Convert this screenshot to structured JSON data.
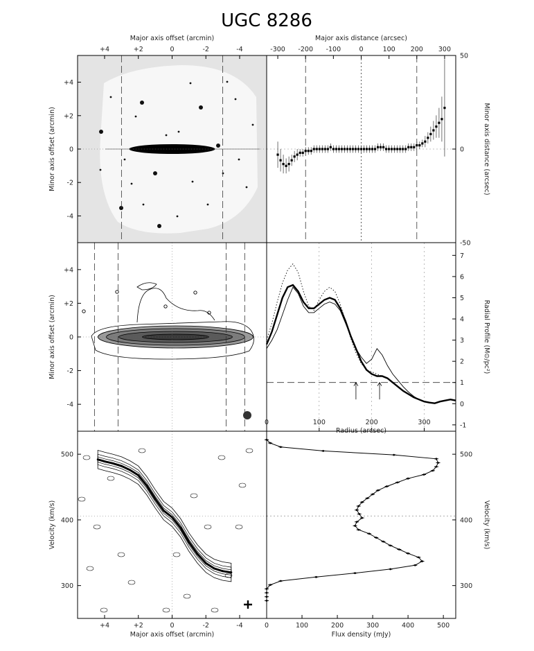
{
  "title": "UGC 8286",
  "chart_data": [
    {
      "id": "optical_image",
      "type": "image",
      "top_xlabel": "Major axis offset (arcmin)",
      "ylabel": "Minor axis offset (arcmin)",
      "xticks": [
        "+4",
        "+2",
        "0",
        "-2",
        "-4"
      ],
      "yticks": [
        "+4",
        "+2",
        "0",
        "-2",
        "-4"
      ],
      "xlim": [
        5.6,
        -5.6
      ],
      "ylim": [
        -5.6,
        5.6
      ],
      "grid": false
    },
    {
      "id": "warp_curve",
      "type": "scatter",
      "top_xlabel": "Major axis distance (arcsec)",
      "ylabel": "Minor axis distance (arcsec)",
      "xticks": [
        "-300",
        "-200",
        "-100",
        "0",
        "100",
        "200",
        "300"
      ],
      "yticks": [
        "50",
        "0",
        "-50"
      ],
      "xlim": [
        -340,
        340
      ],
      "ylim": [
        -50,
        50
      ],
      "x": [
        -300,
        -290,
        -280,
        -270,
        -260,
        -250,
        -240,
        -230,
        -220,
        -210,
        -200,
        -190,
        -180,
        -170,
        -160,
        -150,
        -140,
        -130,
        -120,
        -110,
        -100,
        -90,
        -80,
        -70,
        -60,
        -50,
        -40,
        -30,
        -20,
        -10,
        0,
        10,
        20,
        30,
        40,
        50,
        60,
        70,
        80,
        90,
        100,
        110,
        120,
        130,
        140,
        150,
        160,
        170,
        180,
        190,
        200,
        210,
        220,
        230,
        240,
        250,
        260,
        270,
        280,
        290,
        300
      ],
      "y": [
        -3,
        -6,
        -8,
        -9,
        -8,
        -6,
        -4,
        -3,
        -2,
        -2,
        -1,
        -1,
        -1,
        0,
        0,
        0,
        0,
        0,
        0,
        1,
        0,
        0,
        0,
        0,
        0,
        0,
        0,
        0,
        0,
        0,
        0,
        0,
        0,
        0,
        0,
        0,
        1,
        1,
        1,
        0,
        0,
        0,
        0,
        0,
        0,
        0,
        0,
        1,
        1,
        1,
        2,
        2,
        3,
        4,
        6,
        8,
        10,
        12,
        14,
        16,
        22
      ],
      "err": [
        7,
        6,
        5,
        4,
        4,
        3,
        3,
        3,
        2,
        2,
        2,
        2,
        2,
        2,
        2,
        2,
        2,
        2,
        2,
        2,
        2,
        2,
        2,
        2,
        2,
        2,
        2,
        2,
        2,
        2,
        2,
        2,
        2,
        2,
        2,
        2,
        2,
        2,
        2,
        2,
        2,
        2,
        2,
        2,
        2,
        2,
        2,
        2,
        2,
        2,
        2,
        2,
        2,
        3,
        3,
        4,
        5,
        6,
        8,
        12,
        26
      ],
      "vlines": [
        -200,
        0,
        200
      ]
    },
    {
      "id": "hi_map",
      "type": "contour",
      "ylabel": "Minor axis offset (arcmin)",
      "yticks": [
        "+4",
        "+2",
        "0",
        "-2",
        "-4"
      ],
      "xlim": [
        5.6,
        -5.6
      ],
      "ylim": [
        -5.6,
        5.6
      ],
      "grid": false
    },
    {
      "id": "radial_profile",
      "type": "line",
      "xlabel": "Radius (arcsec)",
      "ylabel": "Radial Profile (M⊙/pc²)",
      "xticks": [
        "0",
        "100",
        "200",
        "300"
      ],
      "yticks": [
        "7",
        "6",
        "5",
        "4",
        "3",
        "2",
        "1",
        "0",
        "-1"
      ],
      "xlim": [
        0,
        360
      ],
      "ylim": [
        -1.3,
        7.6
      ],
      "x": [
        0,
        10,
        20,
        30,
        40,
        50,
        60,
        70,
        80,
        90,
        100,
        110,
        120,
        130,
        140,
        150,
        160,
        170,
        180,
        190,
        200,
        210,
        220,
        230,
        240,
        250,
        260,
        270,
        280,
        290,
        300,
        310,
        320,
        330,
        340,
        350,
        360
      ],
      "series": [
        {
          "style": "thick",
          "values": [
            2.8,
            3.4,
            4.2,
            5.0,
            5.5,
            5.6,
            5.3,
            4.8,
            4.5,
            4.5,
            4.7,
            4.9,
            5.0,
            4.9,
            4.5,
            3.9,
            3.2,
            2.6,
            2.0,
            1.6,
            1.4,
            1.3,
            1.3,
            1.2,
            1.0,
            0.8,
            0.6,
            0.45,
            0.3,
            0.2,
            0.1,
            0.05,
            0.02,
            0.1,
            0.15,
            0.2,
            0.15
          ]
        },
        {
          "style": "thin",
          "values": [
            2.6,
            3.0,
            3.5,
            4.2,
            4.9,
            5.5,
            5.2,
            4.6,
            4.3,
            4.3,
            4.5,
            4.7,
            4.8,
            4.7,
            4.4,
            3.8,
            3.2,
            2.6,
            2.2,
            1.9,
            2.1,
            2.6,
            2.3,
            1.8,
            1.4,
            1.1,
            0.8,
            0.55,
            0.35,
            0.2,
            0.1,
            0.05,
            0.02,
            0.1,
            0.15,
            0.2,
            0.15
          ]
        },
        {
          "style": "dotted",
          "values": [
            3.0,
            3.8,
            4.8,
            5.7,
            6.3,
            6.6,
            6.2,
            5.3,
            4.6,
            4.4,
            4.9,
            5.3,
            5.5,
            5.3,
            4.7,
            3.9,
            3.1,
            2.4,
            1.9,
            1.6,
            1.5,
            1.4,
            1.3,
            1.2,
            1.0,
            0.8,
            0.6,
            0.45,
            0.3,
            0.2,
            0.1,
            0.05,
            0.02,
            0.1,
            0.15,
            0.2,
            0.15
          ]
        }
      ],
      "hline": 1,
      "arrows_x": [
        170,
        215
      ]
    },
    {
      "id": "pv_diagram",
      "type": "contour",
      "xlabel": "Major axis offset (arcmin)",
      "ylabel": "Velocity (km/s)",
      "xticks": [
        "+4",
        "+2",
        "0",
        "-2",
        "-4"
      ],
      "yticks": [
        "500",
        "400",
        "300"
      ],
      "xlim": [
        5.6,
        -5.6
      ],
      "ylim": [
        250,
        535
      ],
      "rotation_curve": {
        "x": [
          4.4,
          4.0,
          3.5,
          3.0,
          2.5,
          2.0,
          1.5,
          1.0,
          0.5,
          0.0,
          -0.5,
          -1.0,
          -1.5,
          -2.0,
          -2.5,
          -3.0,
          -3.5
        ],
        "v": [
          492,
          489,
          486,
          482,
          476,
          468,
          452,
          432,
          414,
          404,
          388,
          366,
          348,
          334,
          326,
          322,
          320
        ]
      }
    },
    {
      "id": "global_profile",
      "type": "line",
      "xlabel": "Flux density (mJy)",
      "ylabel": "Velocity (km/s)",
      "xticks": [
        "0",
        "100",
        "200",
        "300",
        "400",
        "500"
      ],
      "yticks": [
        "500",
        "400",
        "300"
      ],
      "xlim": [
        0,
        535
      ],
      "ylim": [
        250,
        535
      ],
      "v": [
        522,
        517,
        511,
        505,
        499,
        493,
        487,
        481,
        475,
        469,
        463,
        457,
        451,
        445,
        439,
        433,
        427,
        421,
        415,
        409,
        403,
        397,
        391,
        385,
        379,
        373,
        367,
        361,
        355,
        349,
        343,
        337,
        331,
        325,
        319,
        313,
        307,
        301,
        295,
        289,
        283,
        277
      ],
      "flux": [
        0,
        10,
        40,
        160,
        360,
        480,
        485,
        480,
        470,
        445,
        400,
        370,
        340,
        315,
        300,
        285,
        270,
        260,
        255,
        262,
        270,
        255,
        250,
        260,
        290,
        310,
        330,
        350,
        375,
        400,
        430,
        440,
        420,
        350,
        250,
        140,
        40,
        10,
        0,
        0,
        0,
        0
      ],
      "hline": 406
    }
  ]
}
